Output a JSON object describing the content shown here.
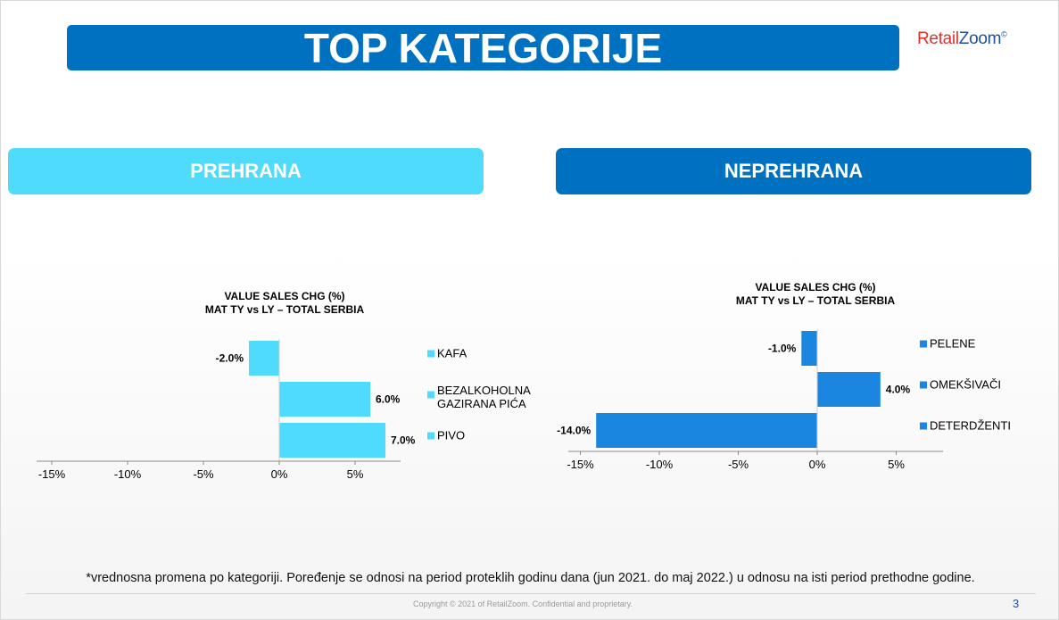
{
  "slide": {
    "title": "TOP KATEGORIJE",
    "logo": {
      "part1": "Retail",
      "part2": "Zoom",
      "mark": "©"
    },
    "footnote": "*vrednosna promena po kategoriji. Poređenje se odnosi na period proteklih godinu dana (jun 2021. do maj 2022.) u odnosu na isti period prethodne godine.",
    "copyright": "Copyright © 2021 of RetailZoom. Confidential and proprietary.",
    "page_number": "3"
  },
  "sections": {
    "left": "PREHRANA",
    "right": "NEPREHRANA"
  },
  "chart_data": [
    {
      "type": "bar",
      "orientation": "horizontal",
      "title": "VALUE SALES CHG (%)",
      "subtitle": "MAT TY vs LY – TOTAL SERBIA",
      "categories": [
        "KAFA",
        "BEZALKOHOLNA GAZIRANA PIĆA",
        "PIVO"
      ],
      "category_lines": [
        [
          "KAFA"
        ],
        [
          "BEZALKOHOLNA",
          "GAZIRANA PIĆA"
        ],
        [
          "PIVO"
        ]
      ],
      "values": [
        -2.0,
        6.0,
        7.0
      ],
      "value_labels": [
        "-2.0%",
        "6.0%",
        "7.0%"
      ],
      "xlim": [
        -15,
        8
      ],
      "xticks": [
        -15,
        -10,
        -5,
        0,
        5
      ],
      "xtick_labels": [
        "-15%",
        "-10%",
        "-5%",
        "0%",
        "5%"
      ],
      "color": "#4fdcfc",
      "legend": "right",
      "grid": false
    },
    {
      "type": "bar",
      "orientation": "horizontal",
      "title": "VALUE SALES CHG (%)",
      "subtitle": "MAT TY vs LY – TOTAL SERBIA",
      "categories": [
        "PELENE",
        "OMEKŠIVAČI",
        "DETERDŽENTI"
      ],
      "category_lines": [
        [
          "PELENE"
        ],
        [
          "OMEKŠIVAČI"
        ],
        [
          "DETERDŽENTI"
        ]
      ],
      "values": [
        -1.0,
        4.0,
        -14.0
      ],
      "value_labels": [
        "-1.0%",
        "4.0%",
        "-14.0%"
      ],
      "xlim": [
        -15,
        8
      ],
      "xticks": [
        -15,
        -10,
        -5,
        0,
        5
      ],
      "xtick_labels": [
        "-15%",
        "-10%",
        "-5%",
        "0%",
        "5%"
      ],
      "color": "#1a86e0",
      "legend": "right",
      "grid": false
    }
  ]
}
